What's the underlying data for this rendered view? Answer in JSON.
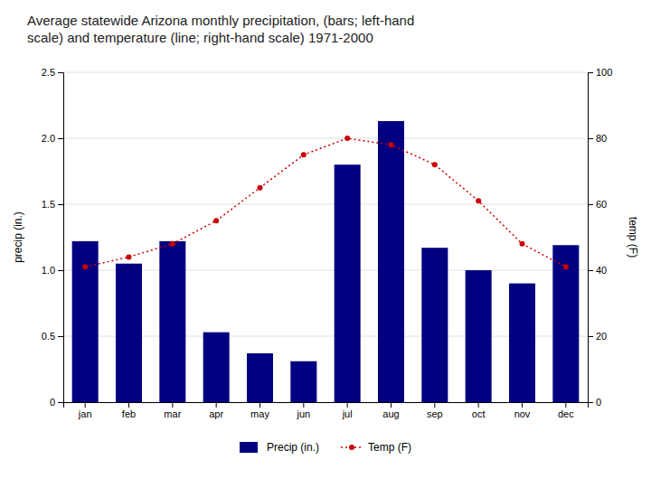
{
  "chart_data": {
    "type": "bar",
    "title": "Average statewide Arizona monthly precipitation, (bars; left-hand\nscale) and temperature (line; right-hand scale) 1971-2000",
    "categories": [
      "jan",
      "feb",
      "mar",
      "apr",
      "may",
      "jun",
      "jul",
      "aug",
      "sep",
      "oct",
      "nov",
      "dec"
    ],
    "series": [
      {
        "name": "Precip (in.)",
        "type": "bar",
        "color": "#000080",
        "values": [
          1.22,
          1.05,
          1.22,
          0.53,
          0.37,
          0.31,
          1.8,
          2.13,
          1.17,
          1.0,
          0.9,
          1.19
        ]
      },
      {
        "name": "Temp (F)",
        "type": "line",
        "axis": "y2",
        "color": "#cc0000",
        "marker": "circle",
        "line_style": "dotted",
        "values": [
          41,
          44,
          48,
          55,
          65,
          75,
          80,
          78,
          72,
          61,
          48,
          41
        ]
      }
    ],
    "ylabel": "precip (in.)",
    "y2label": "temp (F)",
    "ylim": [
      0,
      2.5
    ],
    "yticks": [
      0,
      0.5,
      {
        "value": 1.0,
        "label": "1.0"
      },
      1.5,
      {
        "value": 2.0,
        "label": "2.0"
      },
      2.5
    ],
    "y2lim": [
      0,
      100
    ],
    "y2ticks": [
      0,
      20,
      40,
      60,
      80,
      100
    ],
    "grid": true,
    "legend": "bottom"
  }
}
